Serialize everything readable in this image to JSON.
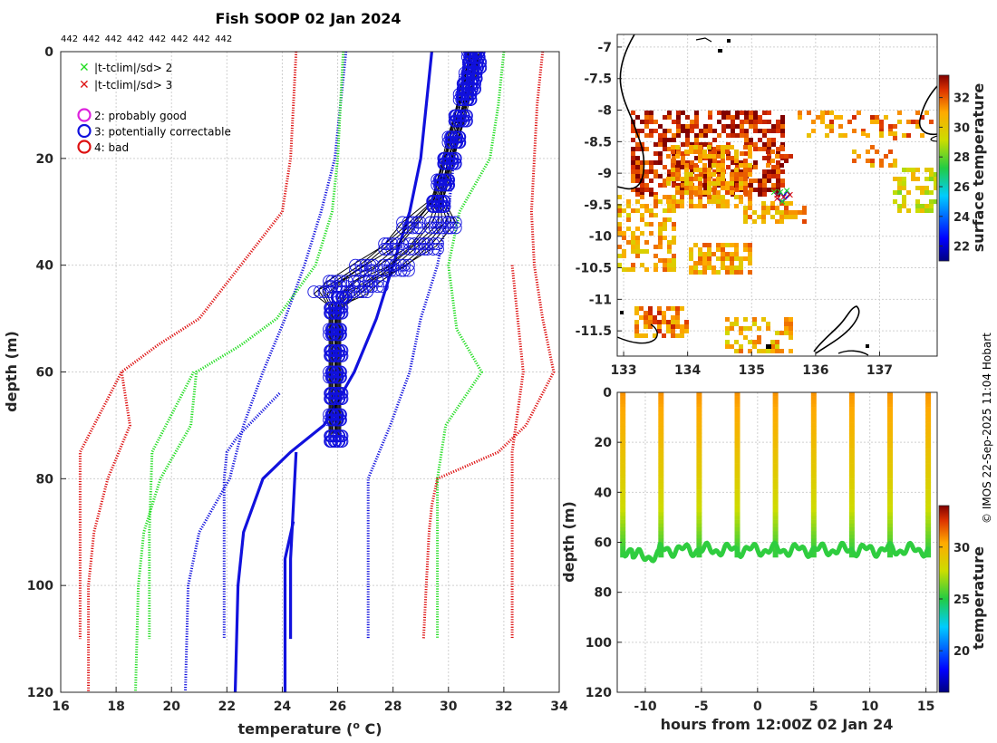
{
  "title": "Fish SOOP 02 Jan 2024",
  "counts": [
    "442",
    "442",
    "442",
    "442",
    "442",
    "442",
    "442",
    "442"
  ],
  "credit": "© IMOS 22-Sep-2025 11:04 Hobart",
  "legend": {
    "flag_items": [
      {
        "symbol": "✕",
        "color": "#22dd22",
        "label": "|t-tclim|/sd> 2"
      },
      {
        "symbol": "✕",
        "color": "#dd1111",
        "label": "|t-tclim|/sd> 3"
      }
    ],
    "qc_items": [
      {
        "symbol": "○",
        "color": "#dd22dd",
        "label": "2: probably good"
      },
      {
        "symbol": "○",
        "color": "#1111dd",
        "label": "3: potentially correctable"
      },
      {
        "symbol": "○",
        "color": "#dd1111",
        "label": "4: bad"
      }
    ]
  },
  "chart_data": [
    {
      "type": "line",
      "name": "profile",
      "xlabel": "temperature (",
      "xlabel_sup": "o",
      "xlabel_end": " C)",
      "ylabel": "depth (m)",
      "xlim": [
        16,
        34
      ],
      "ylim": [
        120,
        0
      ],
      "xticks": [
        "16",
        "18",
        "20",
        "22",
        "24",
        "26",
        "28",
        "30",
        "32",
        "34"
      ],
      "yticks": [
        "0",
        "20",
        "40",
        "60",
        "80",
        "100",
        "120"
      ],
      "series": [
        {
          "name": "clim +3sd",
          "color": "#dd1111",
          "style": "dotted",
          "points": [
            [
              33.4,
              0
            ],
            [
              33.3,
              5
            ],
            [
              33.2,
              10
            ],
            [
              33.1,
              20
            ],
            [
              33.0,
              30
            ],
            [
              33.1,
              40
            ],
            [
              33.4,
              50
            ],
            [
              33.8,
              60
            ],
            [
              32.8,
              70
            ],
            [
              31.8,
              75
            ],
            [
              29.6,
              80
            ],
            [
              29.4,
              85
            ],
            [
              29.3,
              90
            ],
            [
              29.2,
              100
            ],
            [
              29.1,
              110
            ]
          ]
        },
        {
          "name": "clim +3sd 110m",
          "color": "#dd1111",
          "style": "dotted",
          "points": [
            [
              32.3,
              40
            ],
            [
              32.7,
              60
            ],
            [
              32.3,
              75
            ],
            [
              32.3,
              90
            ],
            [
              32.3,
              110
            ]
          ]
        },
        {
          "name": "clim +2sd",
          "color": "#22dd22",
          "style": "dotted",
          "points": [
            [
              32.0,
              0
            ],
            [
              31.8,
              10
            ],
            [
              31.5,
              20
            ],
            [
              30.4,
              30
            ],
            [
              30.0,
              40
            ],
            [
              30.3,
              52
            ],
            [
              31.2,
              60
            ],
            [
              29.9,
              70
            ],
            [
              29.6,
              80
            ],
            [
              29.6,
              90
            ],
            [
              29.6,
              110
            ]
          ]
        },
        {
          "name": "clim +1sd",
          "color": "#1111dd",
          "style": "dotted",
          "points": [
            [
              30.6,
              0
            ],
            [
              30.4,
              10
            ],
            [
              30.2,
              20
            ],
            [
              30.0,
              30
            ],
            [
              29.6,
              40
            ],
            [
              29.0,
              50
            ],
            [
              28.6,
              60
            ],
            [
              27.9,
              70
            ],
            [
              27.1,
              80
            ],
            [
              27.1,
              90
            ],
            [
              27.1,
              110
            ]
          ]
        },
        {
          "name": "clim mean",
          "color": "#1111dd",
          "style": "solid",
          "points": [
            [
              29.4,
              0
            ],
            [
              29.2,
              10
            ],
            [
              29.0,
              20
            ],
            [
              28.6,
              30
            ],
            [
              28.0,
              40
            ],
            [
              27.4,
              50
            ],
            [
              26.6,
              60
            ],
            [
              25.5,
              70
            ],
            [
              24.3,
              75
            ],
            [
              23.3,
              80
            ],
            [
              22.6,
              90
            ],
            [
              22.4,
              100
            ],
            [
              22.3,
              120
            ]
          ]
        },
        {
          "name": "clim mean 2",
          "color": "#1111dd",
          "style": "solid",
          "points": [
            [
              24.5,
              75
            ],
            [
              24.4,
              85
            ],
            [
              24.3,
              95
            ],
            [
              24.3,
              110
            ]
          ]
        },
        {
          "name": "clim mean 3",
          "color": "#1111dd",
          "style": "solid",
          "points": [
            [
              24.4,
              88
            ],
            [
              24.1,
              95
            ],
            [
              24.1,
              120
            ]
          ]
        },
        {
          "name": "clim -1sd",
          "color": "#1111dd",
          "style": "dotted",
          "points": [
            [
              26.3,
              0
            ],
            [
              26.1,
              10
            ],
            [
              25.9,
              20
            ],
            [
              25.4,
              30
            ],
            [
              24.8,
              40
            ],
            [
              24.1,
              50
            ],
            [
              23.3,
              60
            ],
            [
              22.6,
              70
            ],
            [
              22.1,
              80
            ],
            [
              21.0,
              90
            ],
            [
              20.6,
              100
            ],
            [
              20.5,
              120
            ]
          ]
        },
        {
          "name": "clim -1sd 2",
          "color": "#1111dd",
          "style": "dotted",
          "points": [
            [
              23.9,
              64
            ],
            [
              22.4,
              72
            ],
            [
              22.0,
              75
            ],
            [
              21.9,
              80
            ],
            [
              21.9,
              110
            ]
          ]
        },
        {
          "name": "clim -2sd",
          "color": "#22dd22",
          "style": "dotted",
          "points": [
            [
              26.2,
              0
            ],
            [
              26.1,
              10
            ],
            [
              26.0,
              20
            ],
            [
              25.8,
              30
            ],
            [
              25.2,
              40
            ],
            [
              23.8,
              50
            ],
            [
              22.5,
              55
            ],
            [
              20.9,
              60
            ],
            [
              20.7,
              70
            ],
            [
              19.6,
              80
            ],
            [
              19.0,
              90
            ],
            [
              18.8,
              100
            ],
            [
              18.7,
              120
            ]
          ]
        },
        {
          "name": "clim -2sd 2",
          "color": "#22dd22",
          "style": "dotted",
          "points": [
            [
              20.8,
              60
            ],
            [
              19.3,
              75
            ],
            [
              19.2,
              90
            ],
            [
              19.2,
              110
            ]
          ]
        },
        {
          "name": "clim -3sd",
          "color": "#dd1111",
          "style": "dotted",
          "points": [
            [
              24.5,
              0
            ],
            [
              24.4,
              10
            ],
            [
              24.3,
              20
            ],
            [
              24.0,
              30
            ],
            [
              22.5,
              40
            ],
            [
              21.0,
              50
            ],
            [
              19.5,
              55
            ],
            [
              18.2,
              60
            ],
            [
              18.5,
              70
            ],
            [
              17.7,
              80
            ],
            [
              17.2,
              90
            ],
            [
              17.0,
              100
            ],
            [
              17.0,
              120
            ]
          ]
        },
        {
          "name": "clim -3sd 2",
          "color": "#dd1111",
          "style": "dotted",
          "points": [
            [
              18.2,
              60
            ],
            [
              16.7,
              75
            ],
            [
              16.7,
              90
            ],
            [
              16.7,
              110
            ]
          ]
        },
        {
          "name": "observed profile",
          "color": "#000000",
          "style": "solid",
          "marker": "circle",
          "marker_color": "#1111dd",
          "points": [
            [
              30.9,
              0
            ],
            [
              30.9,
              2
            ],
            [
              30.8,
              4
            ],
            [
              30.7,
              6
            ],
            [
              30.6,
              8
            ],
            [
              30.4,
              12
            ],
            [
              30.2,
              16
            ],
            [
              30.0,
              20
            ],
            [
              29.8,
              24
            ],
            [
              29.6,
              28
            ],
            [
              29.3,
              32
            ],
            [
              28.6,
              36
            ],
            [
              27.6,
              40
            ],
            [
              26.6,
              43
            ],
            [
              26.1,
              45
            ],
            [
              25.9,
              48
            ],
            [
              25.9,
              52
            ],
            [
              25.9,
              56
            ],
            [
              25.9,
              60
            ],
            [
              25.9,
              64
            ],
            [
              25.9,
              68
            ],
            [
              25.9,
              72
            ]
          ]
        }
      ]
    },
    {
      "type": "heatmap",
      "name": "map",
      "xlim": [
        132.9,
        137.9
      ],
      "ylim": [
        -11.9,
        -6.8
      ],
      "xticks": [
        "133",
        "134",
        "135",
        "136",
        "137"
      ],
      "yticks": [
        "-7",
        "-7.5",
        "-8",
        "-8.5",
        "-9",
        "-9.5",
        "-10",
        "-10.5",
        "-11",
        "-11.5"
      ],
      "colorbar_label": "surface temperature",
      "colorbar_ticks": [
        "22",
        "24",
        "26",
        "28",
        "30",
        "32"
      ],
      "colorbar_range": [
        21,
        33.5
      ],
      "track": [
        [
          135.35,
          -9.3
        ],
        [
          135.4,
          -9.35
        ],
        [
          135.45,
          -9.3
        ],
        [
          135.5,
          -9.38
        ],
        [
          135.55,
          -9.28
        ],
        [
          135.6,
          -9.34
        ],
        [
          135.48,
          -9.45
        ],
        [
          135.4,
          -9.4
        ]
      ]
    },
    {
      "type": "heatmap",
      "name": "time-depth",
      "xlabel": "hours from 12:00Z 02 Jan 24",
      "ylabel": "depth (m)",
      "xlim": [
        -12.5,
        16
      ],
      "ylim": [
        120,
        0
      ],
      "xticks": [
        "-10",
        "-5",
        "0",
        "5",
        "10",
        "15"
      ],
      "yticks": [
        "0",
        "20",
        "40",
        "60",
        "80",
        "100",
        "120"
      ],
      "colorbar_label": "temperature",
      "colorbar_ticks": [
        "20",
        "25",
        "30"
      ],
      "colorbar_range": [
        16,
        34
      ],
      "casts_hours": [
        -12.0,
        -8.6,
        -5.2,
        -1.8,
        1.6,
        5.0,
        8.4,
        11.8,
        15.2
      ]
    }
  ]
}
